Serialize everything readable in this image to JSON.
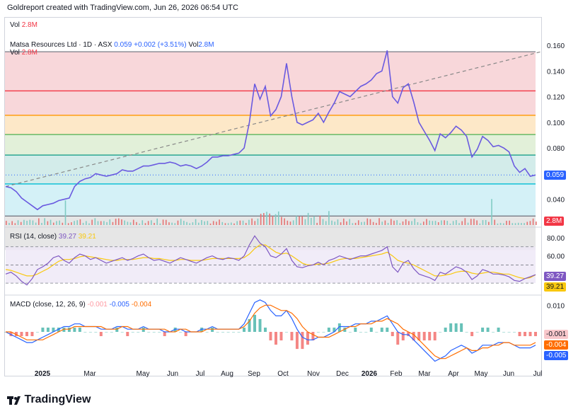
{
  "header": {
    "text": "Goldreport created with TradingView.com, Jun 26, 2026 06:54 UTC"
  },
  "volume_pane": {
    "label": "Vol",
    "value": "2.8M"
  },
  "price_legend": {
    "symbol": "Matsa Resources Ltd · 1D · ASX",
    "close": "0.059",
    "change": "+0.002 (+3.51%)",
    "vol_label": "Vol",
    "vol_value": "2.8M",
    "vol_label_2": "Vol",
    "vol_value_2": "2.8M"
  },
  "rsi_legend": {
    "name": "RSI (14, close)",
    "rsi": "39.27",
    "ma": "39.21"
  },
  "macd_legend": {
    "name": "MACD (close, 12, 26, 9)",
    "hist": "-0.001",
    "macd": "-0.005",
    "signal": "-0.004"
  },
  "footer": {
    "brand": "TradingView"
  },
  "colors": {
    "price_line": "#6a5ae0",
    "rsi_line": "#7e57c2",
    "rsi_ma": "#f9c80e",
    "macd_line": "#2962ff",
    "signal_line": "#ff6d00",
    "hist_up": "#26a69a",
    "hist_down": "#ef5350"
  },
  "chart_data": [
    {
      "type": "line",
      "title": "Matsa Resources Ltd · 1D · ASX",
      "ylim": [
        0.02,
        0.165
      ],
      "y_ticks": [
        "0.160",
        "0.140",
        "0.120",
        "0.100",
        "0.080",
        "0.040"
      ],
      "x_ticks": [
        "2025",
        "Mar",
        "May",
        "Jun",
        "Jul",
        "Aug",
        "Sep",
        "Oct",
        "Nov",
        "Dec",
        "2026",
        "Feb",
        "Mar",
        "Apr",
        "May",
        "Jun",
        "Jul"
      ],
      "fib_levels": [
        {
          "price": 0.155,
          "color": "#787b86",
          "fill": "#f8d7da"
        },
        {
          "price": 0.1245,
          "color": "#f23645",
          "fill": "#f8d7da"
        },
        {
          "price": 0.1055,
          "color": "#ff9800",
          "fill": "#fde8c8"
        },
        {
          "price": 0.0905,
          "color": "#4caf50",
          "fill": "#e2f0d9"
        },
        {
          "price": 0.0745,
          "color": "#089981",
          "fill": "#d3ecea"
        },
        {
          "price": 0.052,
          "color": "#00bcd4",
          "fill": "#d4f1f7"
        },
        {
          "price": 0.027,
          "color": "#787b86",
          "fill": "#e6e6e6"
        }
      ],
      "trendline": [
        [
          0,
          0.05
        ],
        [
          101,
          0.155
        ]
      ],
      "last_price": "0.059",
      "series": [
        {
          "values": [
            0.05,
            0.049,
            0.046,
            0.041,
            0.038,
            0.035,
            0.032,
            0.035,
            0.036,
            0.037,
            0.039,
            0.04,
            0.041,
            0.05,
            0.054,
            0.056,
            0.057,
            0.06,
            0.059,
            0.058,
            0.059,
            0.06,
            0.063,
            0.062,
            0.062,
            0.064,
            0.066,
            0.066,
            0.067,
            0.068,
            0.068,
            0.069,
            0.068,
            0.066,
            0.067,
            0.066,
            0.064,
            0.066,
            0.069,
            0.073,
            0.073,
            0.074,
            0.074,
            0.075,
            0.076,
            0.08,
            0.1,
            0.13,
            0.118,
            0.128,
            0.105,
            0.11,
            0.12,
            0.146,
            0.12,
            0.1,
            0.098,
            0.1,
            0.102,
            0.107,
            0.1,
            0.108,
            0.115,
            0.124,
            0.122,
            0.12,
            0.124,
            0.128,
            0.13,
            0.133,
            0.138,
            0.14,
            0.156,
            0.12,
            0.115,
            0.127,
            0.13,
            0.116,
            0.1,
            0.093,
            0.086,
            0.078,
            0.091,
            0.088,
            0.092,
            0.097,
            0.094,
            0.089,
            0.073,
            0.079,
            0.089,
            0.086,
            0.081,
            0.082,
            0.08,
            0.077,
            0.066,
            0.061,
            0.064,
            0.058,
            0.059
          ]
        }
      ],
      "volume_label": "2.8M"
    },
    {
      "type": "line",
      "title": "RSI (14, close)",
      "ylim": [
        20,
        90
      ],
      "y_ticks": [
        "80.00",
        "60.00"
      ],
      "bands": [
        30,
        50,
        70
      ],
      "series": [
        {
          "name": "RSI",
          "values": [
            40,
            42,
            38,
            32,
            28,
            35,
            45,
            48,
            52,
            58,
            60,
            55,
            52,
            58,
            62,
            60,
            56,
            58,
            55,
            52,
            54,
            56,
            58,
            55,
            57,
            60,
            62,
            58,
            55,
            56,
            54,
            52,
            55,
            58,
            56,
            54,
            52,
            55,
            58,
            60,
            57,
            56,
            58,
            57,
            55,
            60,
            72,
            82,
            74,
            70,
            60,
            58,
            62,
            68,
            55,
            48,
            47,
            49,
            50,
            53,
            50,
            55,
            57,
            60,
            58,
            56,
            58,
            60,
            60,
            62,
            64,
            66,
            70,
            48,
            42,
            52,
            55,
            46,
            40,
            38,
            36,
            33,
            42,
            40,
            44,
            48,
            46,
            42,
            34,
            38,
            45,
            43,
            40,
            40,
            39,
            37,
            33,
            32,
            35,
            37,
            39.27
          ]
        },
        {
          "name": "MA",
          "values": [
            45,
            44,
            42,
            40,
            38,
            38,
            40,
            43,
            46,
            50,
            54,
            56,
            56,
            57,
            59,
            60,
            59,
            58,
            57,
            56,
            55,
            55,
            56,
            56,
            56,
            57,
            58,
            58,
            57,
            57,
            56,
            55,
            55,
            56,
            56,
            55,
            55,
            55,
            56,
            57,
            57,
            57,
            57,
            57,
            57,
            58,
            62,
            68,
            72,
            72,
            68,
            64,
            62,
            63,
            60,
            56,
            52,
            50,
            50,
            51,
            51,
            52,
            54,
            56,
            57,
            57,
            57,
            58,
            59,
            60,
            61,
            62,
            64,
            60,
            55,
            53,
            52,
            50,
            47,
            44,
            41,
            38,
            38,
            39,
            40,
            42,
            43,
            43,
            41,
            40,
            41,
            42,
            42,
            41,
            40,
            40,
            38,
            36,
            35,
            36,
            39.21
          ]
        }
      ]
    },
    {
      "type": "line",
      "title": "MACD (close, 12, 26, 9)",
      "ylim": [
        -0.013,
        0.013
      ],
      "y_ticks": [
        "0.010"
      ],
      "series": [
        {
          "name": "MACD",
          "values": [
            0.0,
            -0.001,
            -0.002,
            -0.003,
            -0.004,
            -0.004,
            -0.003,
            -0.002,
            -0.001,
            0.0,
            0.001,
            0.002,
            0.002,
            0.003,
            0.003,
            0.002,
            0.002,
            0.002,
            0.001,
            0.001,
            0.001,
            0.002,
            0.002,
            0.001,
            0.001,
            0.001,
            0.002,
            0.001,
            0.001,
            0.001,
            0.0,
            0.0,
            0.001,
            0.001,
            0.0,
            0.0,
            0.0,
            0.001,
            0.001,
            0.002,
            0.001,
            0.001,
            0.001,
            0.001,
            0.001,
            0.003,
            0.007,
            0.011,
            0.012,
            0.011,
            0.008,
            0.006,
            0.006,
            0.008,
            0.005,
            0.001,
            -0.002,
            -0.003,
            -0.003,
            -0.002,
            -0.002,
            -0.001,
            0.0,
            0.002,
            0.002,
            0.002,
            0.003,
            0.003,
            0.003,
            0.004,
            0.004,
            0.005,
            0.006,
            0.003,
            0.0,
            -0.001,
            -0.001,
            -0.003,
            -0.005,
            -0.007,
            -0.009,
            -0.011,
            -0.01,
            -0.009,
            -0.007,
            -0.006,
            -0.005,
            -0.006,
            -0.008,
            -0.007,
            -0.005,
            -0.005,
            -0.005,
            -0.004,
            -0.004,
            -0.004,
            -0.005,
            -0.006,
            -0.006,
            -0.006,
            -0.005
          ]
        },
        {
          "name": "Signal",
          "values": [
            0.0,
            0.0,
            -0.001,
            -0.002,
            -0.003,
            -0.003,
            -0.003,
            -0.003,
            -0.002,
            -0.001,
            0.0,
            0.001,
            0.001,
            0.002,
            0.002,
            0.002,
            0.002,
            0.002,
            0.002,
            0.001,
            0.001,
            0.001,
            0.002,
            0.002,
            0.001,
            0.001,
            0.001,
            0.001,
            0.001,
            0.001,
            0.001,
            0.0,
            0.0,
            0.001,
            0.001,
            0.0,
            0.0,
            0.0,
            0.001,
            0.001,
            0.001,
            0.001,
            0.001,
            0.001,
            0.001,
            0.002,
            0.004,
            0.007,
            0.009,
            0.01,
            0.01,
            0.009,
            0.008,
            0.008,
            0.007,
            0.005,
            0.002,
            0.0,
            -0.001,
            -0.002,
            -0.002,
            -0.002,
            -0.001,
            0.0,
            0.001,
            0.002,
            0.002,
            0.003,
            0.003,
            0.003,
            0.004,
            0.004,
            0.005,
            0.004,
            0.003,
            0.001,
            0.0,
            -0.001,
            -0.003,
            -0.005,
            -0.007,
            -0.009,
            -0.01,
            -0.01,
            -0.009,
            -0.008,
            -0.007,
            -0.006,
            -0.007,
            -0.007,
            -0.006,
            -0.006,
            -0.005,
            -0.005,
            -0.004,
            -0.004,
            -0.005,
            -0.005,
            -0.005,
            -0.005,
            -0.004
          ]
        }
      ],
      "tags": [
        "-0.001",
        "-0.004",
        "-0.005"
      ]
    }
  ]
}
